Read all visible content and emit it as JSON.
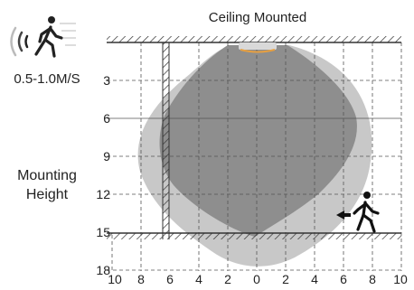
{
  "title": "Ceiling Mounted",
  "speed_label": "0.5-1.0M/S",
  "y_axis_label_line1": "Mounting",
  "y_axis_label_line2": "Height",
  "y_ticks": [
    "3",
    "6",
    "9",
    "12",
    "15",
    "18"
  ],
  "x_ticks": [
    "10",
    "8",
    "6",
    "4",
    "2",
    "0",
    "2",
    "4",
    "6",
    "8",
    "10"
  ],
  "colors": {
    "outer_zone": "#c8c8c8",
    "inner_zone": "#8e8e8e",
    "sensor": "#e8a040",
    "line": "#333333"
  },
  "icons": {
    "motion_waves": "signal-waves-icon",
    "walker_top": "walking-person-icon",
    "walker_right": "walking-person-icon",
    "arrow": "arrow-left-icon"
  }
}
